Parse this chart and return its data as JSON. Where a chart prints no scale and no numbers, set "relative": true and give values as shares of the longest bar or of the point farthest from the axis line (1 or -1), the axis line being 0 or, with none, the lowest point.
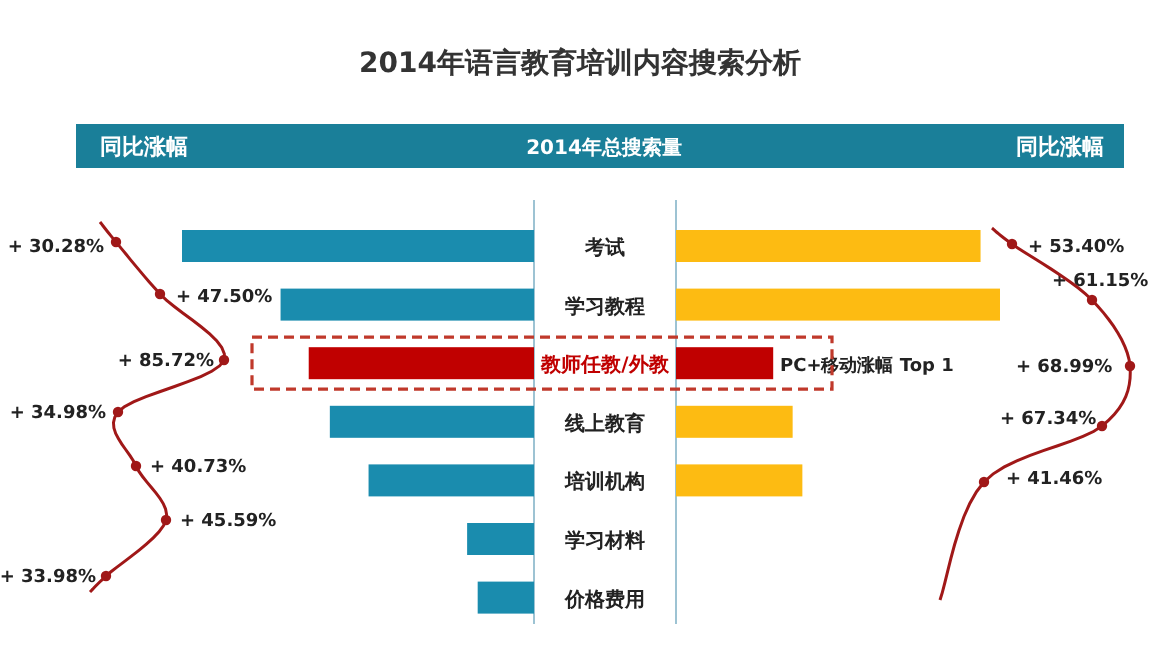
{
  "chart_data": [
    {
      "type": "bar",
      "orientation": "horizontal",
      "relative": true,
      "title": "2014年语言教育培训内容搜索分析",
      "subtitle": "2014年总搜索量",
      "categories": [
        "考试",
        "学习教程",
        "教师任教/外教",
        "线上教育",
        "培训机构",
        "学习材料",
        "价格费用"
      ],
      "colors": [
        "#1a8cae",
        "#1a8cae",
        "#c00000",
        "#1a8cae",
        "#1a8cae",
        "#1a8cae",
        "#1a8cae"
      ],
      "values": [
        -1,
        -0.72,
        -0.64,
        -0.58,
        -0.47,
        -0.19,
        -0.16
      ],
      "annotations": [
        "同比涨幅",
        "+ 30.28%",
        "+ 47.50%",
        "+ 85.72%",
        "+ 34.98%",
        "+ 40.73%",
        "+ 45.59%",
        "+ 33.98%"
      ]
    },
    {
      "type": "bar",
      "orientation": "horizontal",
      "relative": true,
      "categories": [
        null,
        null,
        null,
        null,
        null,
        null,
        null
      ],
      "colors": [
        "#fdbb12",
        "#fdbb12",
        "#c00000",
        "#fdbb12",
        "#fdbb12",
        null,
        null
      ],
      "values": [
        0.94,
        1,
        0.3,
        0.36,
        0.39,
        null,
        null
      ],
      "annotations": [
        "同比涨幅",
        "+ 53.40%",
        "+ 61.15%",
        "+ 68.99%",
        "+ 67.34%",
        "+ 41.46%",
        "PC+移动涨幅 Top 1"
      ]
    }
  ]
}
